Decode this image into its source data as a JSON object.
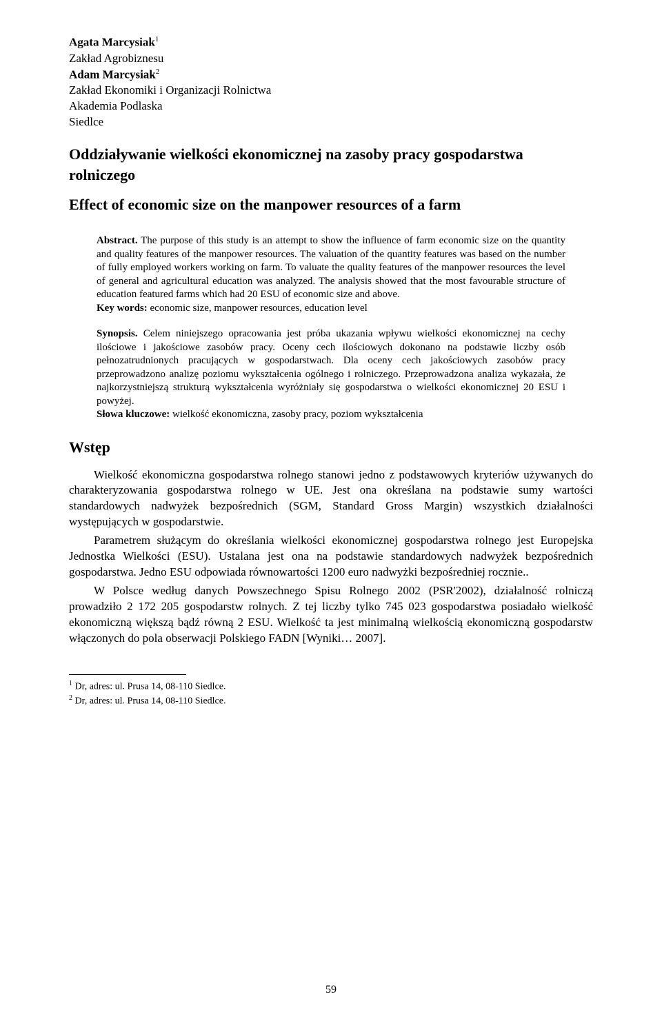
{
  "authors": {
    "a1_name": "Agata Marcysiak",
    "a1_sup": "1",
    "a1_affil": "Zakład Agrobiznesu",
    "a2_name": "Adam Marcysiak",
    "a2_sup": "2",
    "a2_affil": "Zakład Ekonomiki i Organizacji Rolnictwa",
    "inst1": "Akademia Podlaska",
    "inst2": "Siedlce"
  },
  "title_pl": "Oddziaływanie wielkości ekonomicznej na zasoby pracy gospodarstwa rolniczego",
  "title_en": "Effect of economic size on the manpower resources of a farm",
  "abstract": {
    "lead": "Abstract.",
    "text": " The purpose of this study is an attempt to show the influence of farm economic size on the quantity and quality features of the manpower resources. The valuation of the quantity features was based on the number of fully employed workers working on farm. To valuate the quality features of the manpower resources the level of general and agricultural education was analyzed. The analysis showed that the most favourable structure of education featured farms which had 20 ESU of economic size and above.",
    "kw_label": "Key words:",
    "kw_text": " economic size, manpower resources, education level"
  },
  "synopsis": {
    "lead": "Synopsis.",
    "text": " Celem niniejszego opracowania jest próba ukazania wpływu wielkości ekonomicznej na cechy ilościowe i jakościowe zasobów pracy. Oceny cech ilościowych dokonano na podstawie liczby osób pełnozatrudnionych pracujących w gospodarstwach. Dla oceny cech jakościowych zasobów pracy przeprowadzono analizę poziomu wykształcenia ogólnego i rolniczego. Przeprowadzona analiza wykazała, że najkorzystniejszą strukturą wykształcenia wyróżniały się gospodarstwa o wielkości ekonomicznej 20 ESU i powyżej.",
    "kw_label": "Słowa kluczowe:",
    "kw_text": " wielkość ekonomiczna, zasoby pracy, poziom wykształcenia"
  },
  "section_heading": "Wstęp",
  "body": {
    "p1": "Wielkość ekonomiczna gospodarstwa rolnego stanowi jedno z podstawowych kryteriów używanych do charakteryzowania gospodarstwa rolnego w UE. Jest ona określana na podstawie sumy wartości standardowych nadwyżek bezpośrednich (SGM, Standard Gross Margin) wszystkich działalności występujących w gospodarstwie.",
    "p2": "Parametrem służącym do określania wielkości ekonomicznej gospodarstwa rolnego jest Europejska Jednostka Wielkości (ESU). Ustalana jest ona na podstawie standardowych nadwyżek bezpośrednich gospodarstwa. Jedno ESU odpowiada równowartości 1200 euro nadwyżki bezpośredniej rocznie..",
    "p3": "W Polsce według danych Powszechnego Spisu Rolnego 2002 (PSR'2002), działalność rolniczą prowadziło 2 172 205 gospodarstw rolnych. Z tej liczby tylko 745 023 gospodarstwa posiadało wielkość ekonomiczną większą bądź równą 2 ESU. Wielkość ta jest minimalną wielkością ekonomiczną gospodarstw włączonych do pola obserwacji Polskiego FADN [Wyniki… 2007]."
  },
  "footnotes": {
    "f1_sup": "1",
    "f1_text": " Dr, adres: ul. Prusa 14, 08-110 Siedlce.",
    "f2_sup": "2",
    "f2_text": " Dr, adres: ul. Prusa 14, 08-110 Siedlce."
  },
  "page_number": "59"
}
